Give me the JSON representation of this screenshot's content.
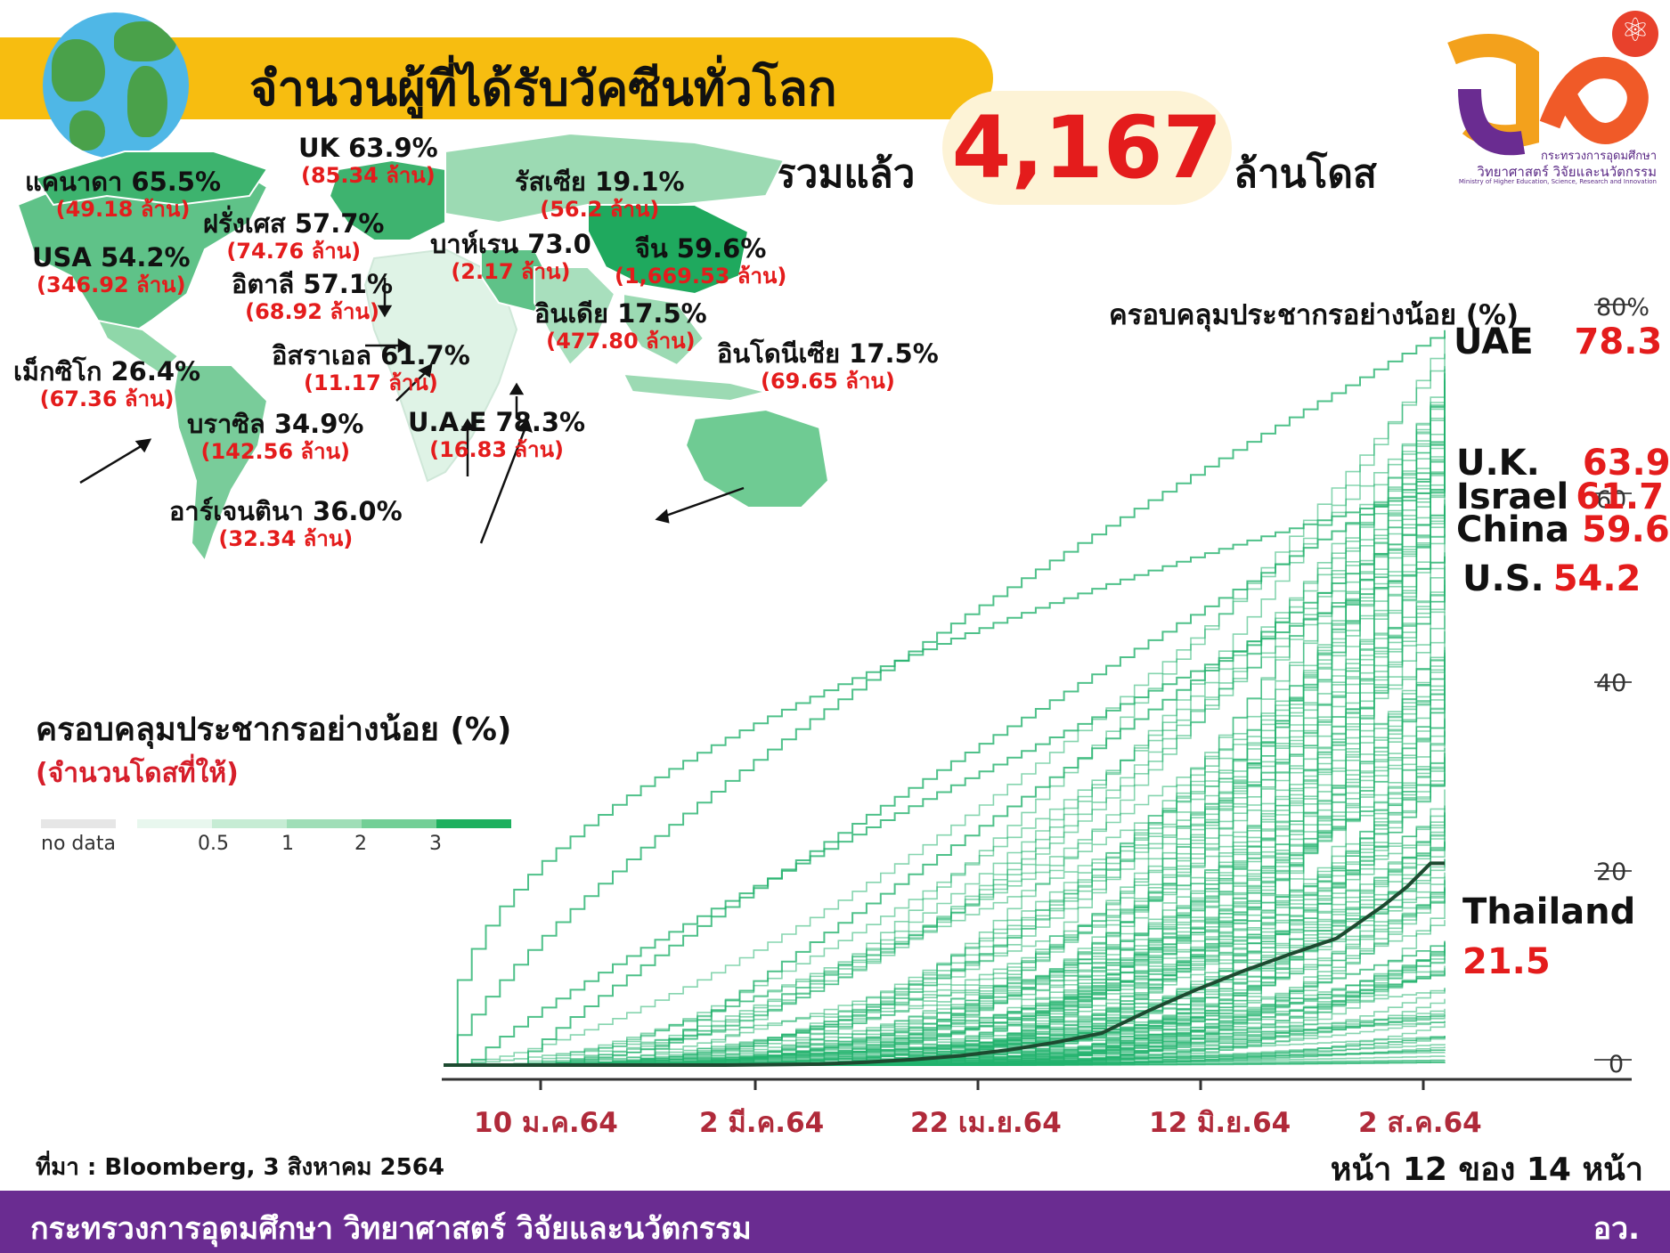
{
  "header": {
    "title": "จำนวนผู้ที่ได้รับวัคซีนทั่วโลก",
    "total_prefix": "รวมแล้ว",
    "total_value": "4,167",
    "total_suffix": "ล้านโดส"
  },
  "logo": {
    "line1": "กระทรวงการอุดมศึกษา",
    "line2": "วิทยาศาสตร์ วิจัยและนวัตกรรม",
    "line3": "Ministry of Higher Education, Science, Research and Innovation",
    "atom": "⚛"
  },
  "map_labels": [
    {
      "country": "UK 63.9%",
      "doses": "(85.34 ล้าน)"
    },
    {
      "country": "แคนาดา 65.5%",
      "doses": "(49.18 ล้าน)"
    },
    {
      "country": "รัสเซีย 19.1%",
      "doses": "(56.2 ล้าน)"
    },
    {
      "country": "ฝรั่งเศส 57.7%",
      "doses": "(74.76 ล้าน)"
    },
    {
      "country": "บาห์เรน 73.0",
      "doses": "(2.17 ล้าน)"
    },
    {
      "country": "จีน 59.6%",
      "doses": "(1,669.53 ล้าน)"
    },
    {
      "country": "USA 54.2%",
      "doses": "(346.92 ล้าน)"
    },
    {
      "country": "อิตาลี 57.1%",
      "doses": "(68.92 ล้าน)"
    },
    {
      "country": "อินเดีย 17.5%",
      "doses": "(477.80 ล้าน)"
    },
    {
      "country": "เม็กซิโก 26.4%",
      "doses": "(67.36 ล้าน)"
    },
    {
      "country": "อิสราเอล 61.7%",
      "doses": "(11.17 ล้าน)"
    },
    {
      "country": "อินโดนีเซีย 17.5%",
      "doses": "(69.65 ล้าน)"
    },
    {
      "country": "บราซิล 34.9%",
      "doses": "(142.56 ล้าน)"
    },
    {
      "country": "U.A.E 78.3%",
      "doses": "(16.83 ล้าน)"
    },
    {
      "country": "อาร์เจนตินา 36.0%",
      "doses": "(32.34 ล้าน)"
    }
  ],
  "legend": {
    "title": "ครอบคลุมประชากรอย่างน้อย (%)",
    "subtitle": "(จำนวนโดสที่ให้)",
    "no_data": "no data",
    "ticks": [
      "0.5",
      "1",
      "2",
      "3"
    ],
    "colors": [
      "#e8f7ee",
      "#c6ecd4",
      "#9fdeb7",
      "#72cf96",
      "#40bf75",
      "#1db05e"
    ]
  },
  "chart_data": {
    "type": "line",
    "title": "ครอบคลุมประชากรอย่างน้อย (%)",
    "x_ticks": [
      "10 ม.ค.64",
      "2 มี.ค.64",
      "22 เม.ย.64",
      "12 มิ.ย.64",
      "2 ส.ค.64"
    ],
    "y_ticks": [
      "0",
      "20",
      "40",
      "60",
      "80%"
    ],
    "ylim": [
      0,
      80
    ],
    "highlighted_series": [
      {
        "name": "UAE",
        "value": "78.3"
      },
      {
        "name": "U.K.",
        "value": "63.9"
      },
      {
        "name": "Israel",
        "value": "61.7"
      },
      {
        "name": "China",
        "value": "59.6"
      },
      {
        "name": "U.S.",
        "value": "54.2"
      },
      {
        "name": "Thailand",
        "value": "21.5"
      }
    ],
    "thailand_series": {
      "name": "Thailand",
      "x": [
        0,
        20,
        40,
        60,
        80,
        90,
        100,
        110,
        120,
        130,
        140,
        150,
        160,
        170,
        180,
        190,
        200,
        205,
        210,
        213
      ],
      "y": [
        0,
        0,
        0,
        0,
        0.1,
        0.3,
        0.6,
        1.0,
        1.6,
        2.4,
        3.4,
        5.8,
        8.0,
        10.0,
        11.8,
        13.5,
        17.0,
        19.0,
        21.5,
        21.5
      ]
    },
    "line_color": "#23b26d",
    "thailand_color": "#1d4a30"
  },
  "source": "ที่มา : Bloomberg, 3 สิงหาคม 2564",
  "page_info": "หน้า 12 ของ 14 หน้า",
  "footer": {
    "ministry": "กระทรวงการอุดมศึกษา วิทยาศาสตร์ วิจัยและนวัตกรรม",
    "abbr": "อว."
  }
}
